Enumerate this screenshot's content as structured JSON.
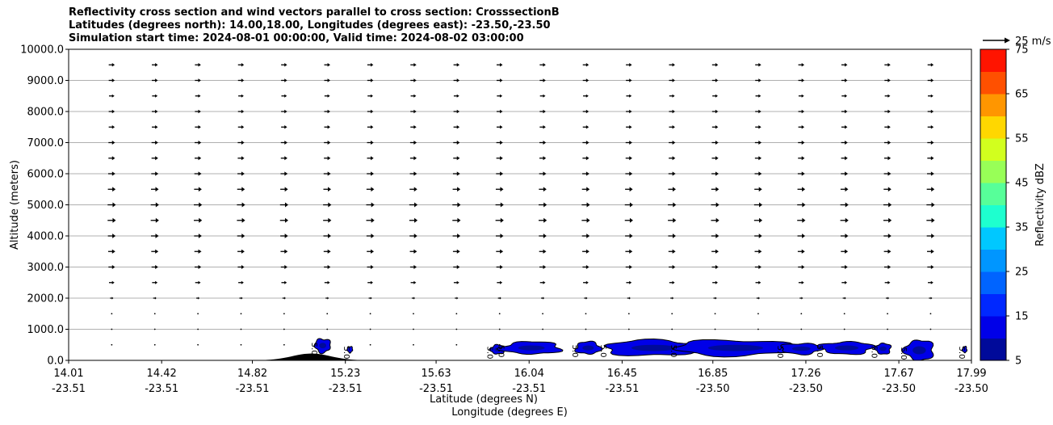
{
  "title_lines": [
    "Reflectivity cross section and wind vectors parallel to cross section: CrosssectionB",
    "Latitudes (degrees north): 14.00,18.00, Longitudes (degrees east): -23.50,-23.50",
    "Simulation start time: 2024-08-01 00:00:00, Valid time: 2024-08-02 03:00:00"
  ],
  "chart_data": {
    "type": "heatmap",
    "subtype": "vertical cross section with wind vectors and filled reflectivity contours",
    "ylabel": "Altitude (meters)",
    "ylim": [
      0,
      10000
    ],
    "y_ticks": [
      "0.0",
      "1000.0",
      "2000.0",
      "3000.0",
      "4000.0",
      "5000.0",
      "6000.0",
      "7000.0",
      "8000.0",
      "9000.0",
      "10000.0"
    ],
    "y_tick_values": [
      0,
      1000,
      2000,
      3000,
      4000,
      5000,
      6000,
      7000,
      8000,
      9000,
      10000
    ],
    "xlabel_1": "Latitude (degrees N)",
    "xlabel_2": "Longitude (degrees E)",
    "xlim": [
      14.01,
      17.99
    ],
    "x_tick_values": [
      14.01,
      14.42,
      14.82,
      15.23,
      15.63,
      16.04,
      16.45,
      16.85,
      17.26,
      17.67,
      17.99
    ],
    "x_tick_lat_labels": [
      "14.01",
      "14.42",
      "14.82",
      "15.23",
      "15.63",
      "16.04",
      "16.45",
      "16.85",
      "17.26",
      "17.67",
      "17.99"
    ],
    "x_tick_lon_labels": [
      "-23.51",
      "-23.51",
      "-23.51",
      "-23.51",
      "-23.51",
      "-23.51",
      "-23.51",
      "-23.50",
      "-23.50",
      "-23.50",
      "-23.50"
    ],
    "grid": "horizontal lines at y ticks",
    "quiver_key": {
      "label": "25 m/s",
      "speed": 25
    },
    "wind": {
      "columns_lat": [
        14.2,
        14.39,
        14.58,
        14.77,
        14.96,
        15.15,
        15.34,
        15.53,
        15.72,
        15.91,
        16.1,
        16.29,
        16.48,
        16.67,
        16.86,
        17.05,
        17.24,
        17.43,
        17.62,
        17.81
      ],
      "levels_m": [
        500,
        1000,
        1500,
        2000,
        2500,
        3000,
        3500,
        4000,
        4500,
        5000,
        5500,
        6000,
        6500,
        7000,
        7500,
        8000,
        8500,
        9000,
        9500
      ],
      "speed_by_level_ms": [
        0.5,
        -1.5,
        1.0,
        3.0,
        5.0,
        6.0,
        6.5,
        7.0,
        7.5,
        7.5,
        7.0,
        6.5,
        6.0,
        6.0,
        5.5,
        5.5,
        5.0,
        5.5,
        5.5
      ]
    },
    "terrain": {
      "peak_lat": 15.08,
      "peak_alt_m": 220,
      "half_width_deg": 0.12
    },
    "colorbar": {
      "label": "Reflectivity dBZ",
      "ticks": [
        "5",
        "15",
        "25",
        "35",
        "45",
        "55",
        "65",
        "75"
      ],
      "tick_values": [
        5,
        15,
        25,
        35,
        45,
        55,
        65,
        75
      ],
      "levels": [
        5,
        10,
        15,
        20,
        25,
        30,
        35,
        40,
        45,
        50,
        55,
        60,
        65,
        70,
        75
      ],
      "colors": [
        "#000a9a",
        "#0000e8",
        "#0028ff",
        "#0064ff",
        "#0096ff",
        "#00c8ff",
        "#1effcf",
        "#57ff99",
        "#98ff57",
        "#d2ff1e",
        "#ffd700",
        "#ff9600",
        "#ff5000",
        "#ff1400",
        "#a80000"
      ]
    },
    "echoes": [
      {
        "lat": 15.13,
        "half_width_deg": 0.035,
        "alt_bottom_m": 250,
        "alt_top_m": 700,
        "label": "5.0"
      },
      {
        "lat": 15.25,
        "half_width_deg": 0.012,
        "alt_bottom_m": 250,
        "alt_top_m": 450,
        "label": "5.0"
      },
      {
        "lat": 15.9,
        "half_width_deg": 0.03,
        "alt_bottom_m": 200,
        "alt_top_m": 500,
        "label": "5.0"
      },
      {
        "lat": 16.05,
        "half_width_deg": 0.13,
        "alt_bottom_m": 200,
        "alt_top_m": 600,
        "label": "5.0"
      },
      {
        "lat": 16.3,
        "half_width_deg": 0.055,
        "alt_bottom_m": 200,
        "alt_top_m": 600,
        "label": "5.0"
      },
      {
        "lat": 16.59,
        "half_width_deg": 0.22,
        "alt_bottom_m": 150,
        "alt_top_m": 650,
        "label": "5.0"
      },
      {
        "lat": 16.95,
        "half_width_deg": 0.27,
        "alt_bottom_m": 150,
        "alt_top_m": 650,
        "label": "5.0"
      },
      {
        "lat": 17.24,
        "half_width_deg": 0.09,
        "alt_bottom_m": 200,
        "alt_top_m": 550,
        "label": "5.0"
      },
      {
        "lat": 17.44,
        "half_width_deg": 0.115,
        "alt_bottom_m": 200,
        "alt_top_m": 600,
        "label": "5.0"
      },
      {
        "lat": 17.6,
        "half_width_deg": 0.035,
        "alt_bottom_m": 200,
        "alt_top_m": 550,
        "label": "5.0"
      },
      {
        "lat": 17.76,
        "half_width_deg": 0.065,
        "alt_bottom_m": 0,
        "alt_top_m": 650,
        "label": "5.0"
      },
      {
        "lat": 17.96,
        "half_width_deg": 0.01,
        "alt_bottom_m": 250,
        "alt_top_m": 450,
        "label": "5.0"
      }
    ]
  }
}
